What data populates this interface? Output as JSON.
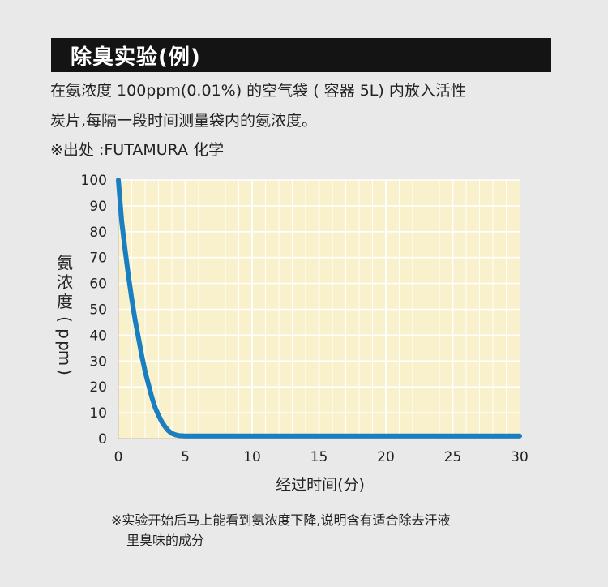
{
  "header": {
    "title": "除臭实验(例)"
  },
  "description": {
    "line1": "在氨浓度 100ppm(0.01%) 的空气袋 ( 容器 5L) 内放入活性",
    "line2": "炭片,每隔一段时间测量袋内的氨浓度。",
    "line3": "※出处 :FUTAMURA 化学"
  },
  "chart_data": {
    "type": "line",
    "title": "",
    "xlabel": "经过时间(分)",
    "ylabel": "氨浓度(ppm)",
    "x_ticks": [
      0,
      5,
      10,
      15,
      20,
      25,
      30
    ],
    "y_ticks": [
      0,
      10,
      20,
      30,
      40,
      50,
      60,
      70,
      80,
      90,
      100
    ],
    "xlim": [
      0,
      30
    ],
    "ylim": [
      0,
      100
    ],
    "grid": true,
    "plot_background": "#f9f1cc",
    "series": [
      {
        "color": "#1a7fc1",
        "x": [
          0,
          0.25,
          0.5,
          0.75,
          1,
          1.25,
          1.5,
          1.75,
          2,
          2.25,
          2.5,
          2.75,
          3,
          3.25,
          3.5,
          3.75,
          4,
          4.25,
          4.5,
          4.75,
          5,
          6,
          8,
          10,
          15,
          20,
          25,
          30
        ],
        "y": [
          100,
          84,
          73,
          63,
          54,
          46,
          39,
          32,
          26,
          21,
          16,
          12,
          9,
          6.5,
          4.5,
          3,
          2,
          1.5,
          1.2,
          1.1,
          1,
          1,
          1,
          1,
          1,
          1,
          1,
          1
        ]
      }
    ]
  },
  "footnote": {
    "line1": "※实验开始后马上能看到氨浓度下降,说明含有适合除去汗液",
    "line2": "里臭味的成分"
  }
}
